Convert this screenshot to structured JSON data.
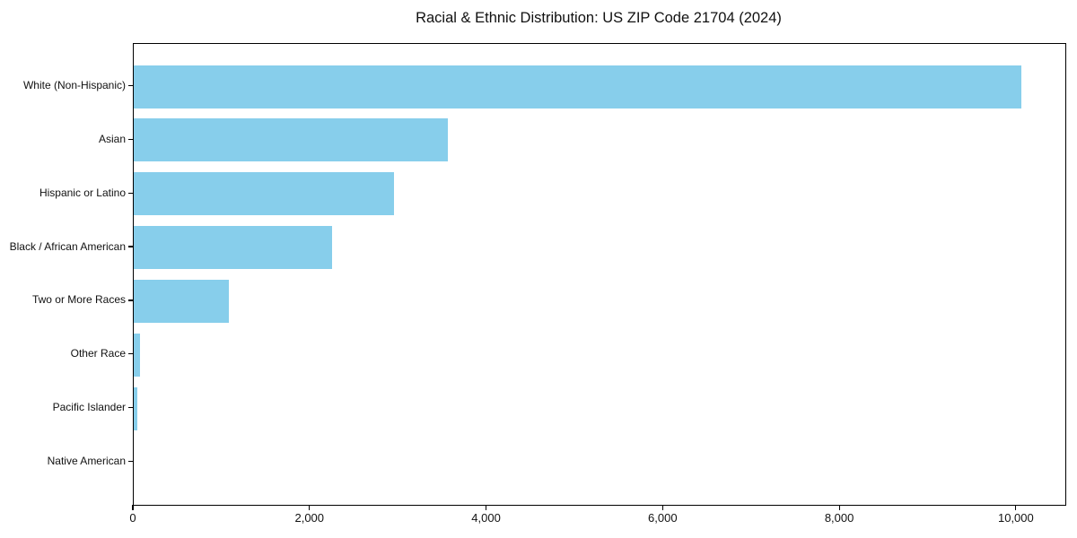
{
  "chart_data": {
    "type": "bar",
    "orientation": "horizontal",
    "title": "Racial & Ethnic Distribution: US ZIP Code 21704 (2024)",
    "categories": [
      "White (Non-Hispanic)",
      "Asian",
      "Hispanic or Latino",
      "Black / African American",
      "Two or More Races",
      "Other Race",
      "Pacific Islander",
      "Native American"
    ],
    "values": [
      10050,
      3560,
      2950,
      2250,
      1080,
      70,
      40,
      0
    ],
    "bar_color": "#87CEEB",
    "axis_color": "#000000",
    "background_color": "#ffffff",
    "xlabel": "",
    "ylabel": "",
    "xlim": [
      0,
      10550
    ],
    "xticks": [
      0,
      2000,
      4000,
      6000,
      8000,
      10000
    ],
    "xtick_labels": [
      "0",
      "2,000",
      "4,000",
      "6,000",
      "8,000",
      "10,000"
    ],
    "grid": false,
    "legend": null
  }
}
